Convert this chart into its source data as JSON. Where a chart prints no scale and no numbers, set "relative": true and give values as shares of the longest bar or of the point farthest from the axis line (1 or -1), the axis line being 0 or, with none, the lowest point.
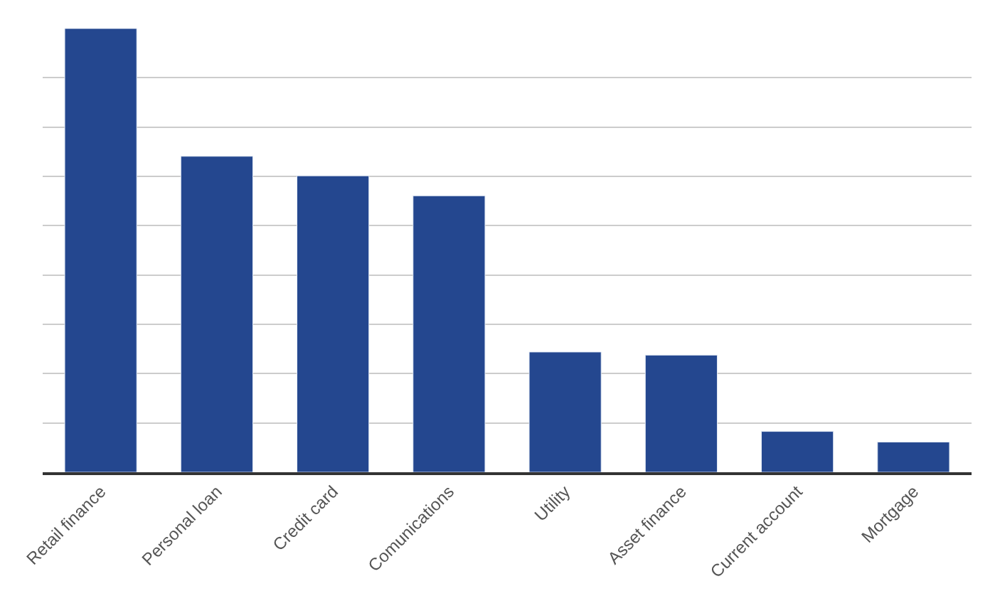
{
  "chart_data": {
    "type": "bar",
    "relative": true,
    "categories": [
      "Retail finance",
      "Personal loan",
      "Credit card",
      "Comunications",
      "Utility",
      "Asset finance",
      "Current account",
      "Mortgage"
    ],
    "values": [
      1,
      0.712,
      0.668,
      0.623,
      0.271,
      0.264,
      0.092,
      0.068
    ],
    "color": "#24478f",
    "grid": "y",
    "legend": false
  }
}
